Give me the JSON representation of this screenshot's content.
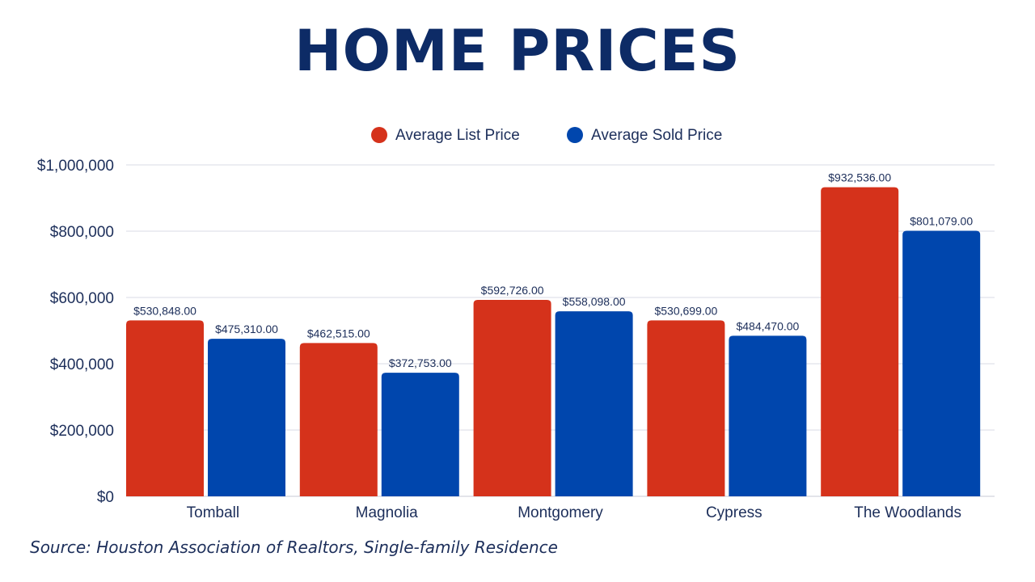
{
  "colors": {
    "list": "#d5321b",
    "sold": "#0046ad",
    "title": "#0d2b66",
    "text": "#1c2e5a",
    "grid": "#d9dbe6"
  },
  "chart_data": {
    "type": "bar",
    "title": "HOME PRICES",
    "categories": [
      "Tomball",
      "Magnolia",
      "Montgomery",
      "Cypress",
      "The Woodlands"
    ],
    "series": [
      {
        "name": "Average List Price",
        "values": [
          530848,
          462515,
          592726,
          530699,
          932536
        ],
        "labels": [
          "$530,848.00",
          "$462,515.00",
          "$592,726.00",
          "$530,699.00",
          "$932,536.00"
        ]
      },
      {
        "name": "Average Sold Price",
        "values": [
          475310,
          372753,
          558098,
          484470,
          801079
        ],
        "labels": [
          "$475,310.00",
          "$372,753.00",
          "$558,098.00",
          "$484,470.00",
          "$801,079.00"
        ]
      }
    ],
    "ylim": [
      0,
      1000000
    ],
    "yticks": [
      0,
      200000,
      400000,
      600000,
      800000,
      1000000
    ],
    "ytick_labels": [
      "$0",
      "$200,000",
      "$400,000",
      "$600,000",
      "$800,000",
      "$1,000,000"
    ],
    "grid": true,
    "legend_position": "top-center",
    "source": "Source: Houston Association of Realtors, Single-family Residence"
  }
}
